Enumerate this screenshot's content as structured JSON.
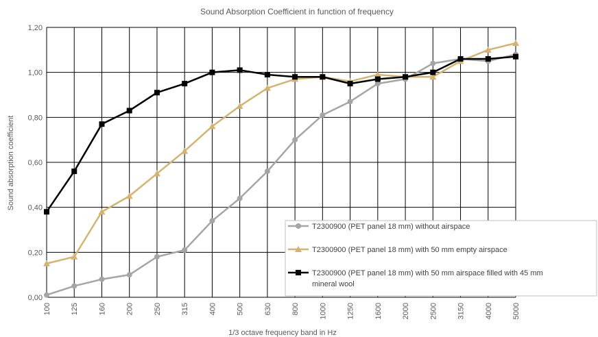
{
  "chart_data": {
    "type": "line",
    "title": "Sound Absorption Coefficient in function of frequency",
    "xlabel": "1/3 octave frequency band in Hz",
    "ylabel": "Sound absorption coefficient",
    "categories": [
      "100",
      "125",
      "160",
      "200",
      "250",
      "315",
      "400",
      "500",
      "630",
      "800",
      "1000",
      "1250",
      "1600",
      "2000",
      "2500",
      "3150",
      "4000",
      "5000"
    ],
    "ylim": [
      0,
      1.2
    ],
    "yticks": [
      "0,00",
      "0,20",
      "0,40",
      "0,60",
      "0,80",
      "1,00",
      "1,20"
    ],
    "grid": true,
    "legend_position": "bottom-right",
    "series": [
      {
        "name": "T2300900 (PET panel 18 mm) without airspace",
        "color": "#A5A5A5",
        "marker": "circle",
        "values": [
          0.01,
          0.05,
          0.08,
          0.1,
          0.18,
          0.21,
          0.34,
          0.44,
          0.56,
          0.7,
          0.81,
          0.87,
          0.95,
          0.97,
          1.04,
          1.06,
          1.05,
          1.08
        ]
      },
      {
        "name": "T2300900 (PET panel 18 mm) with 50 mm empty airspace",
        "color": "#D5B36E",
        "marker": "triangle",
        "values": [
          0.15,
          0.18,
          0.38,
          0.45,
          0.55,
          0.65,
          0.76,
          0.85,
          0.93,
          0.97,
          0.98,
          0.96,
          0.99,
          0.98,
          0.98,
          1.05,
          1.1,
          1.13
        ]
      },
      {
        "name": "T2300900 (PET panel 18 mm) with 50 mm airspace filled with 45 mm mineral wool",
        "name_lines": [
          "T2300900 (PET panel 18 mm) with 50 mm airspace filled with 45 mm",
          "mineral wool"
        ],
        "color": "#000000",
        "marker": "square",
        "values": [
          0.38,
          0.56,
          0.77,
          0.83,
          0.91,
          0.95,
          1.0,
          1.01,
          0.99,
          0.98,
          0.98,
          0.95,
          0.97,
          0.98,
          1.0,
          1.06,
          1.06,
          1.07
        ]
      }
    ]
  }
}
